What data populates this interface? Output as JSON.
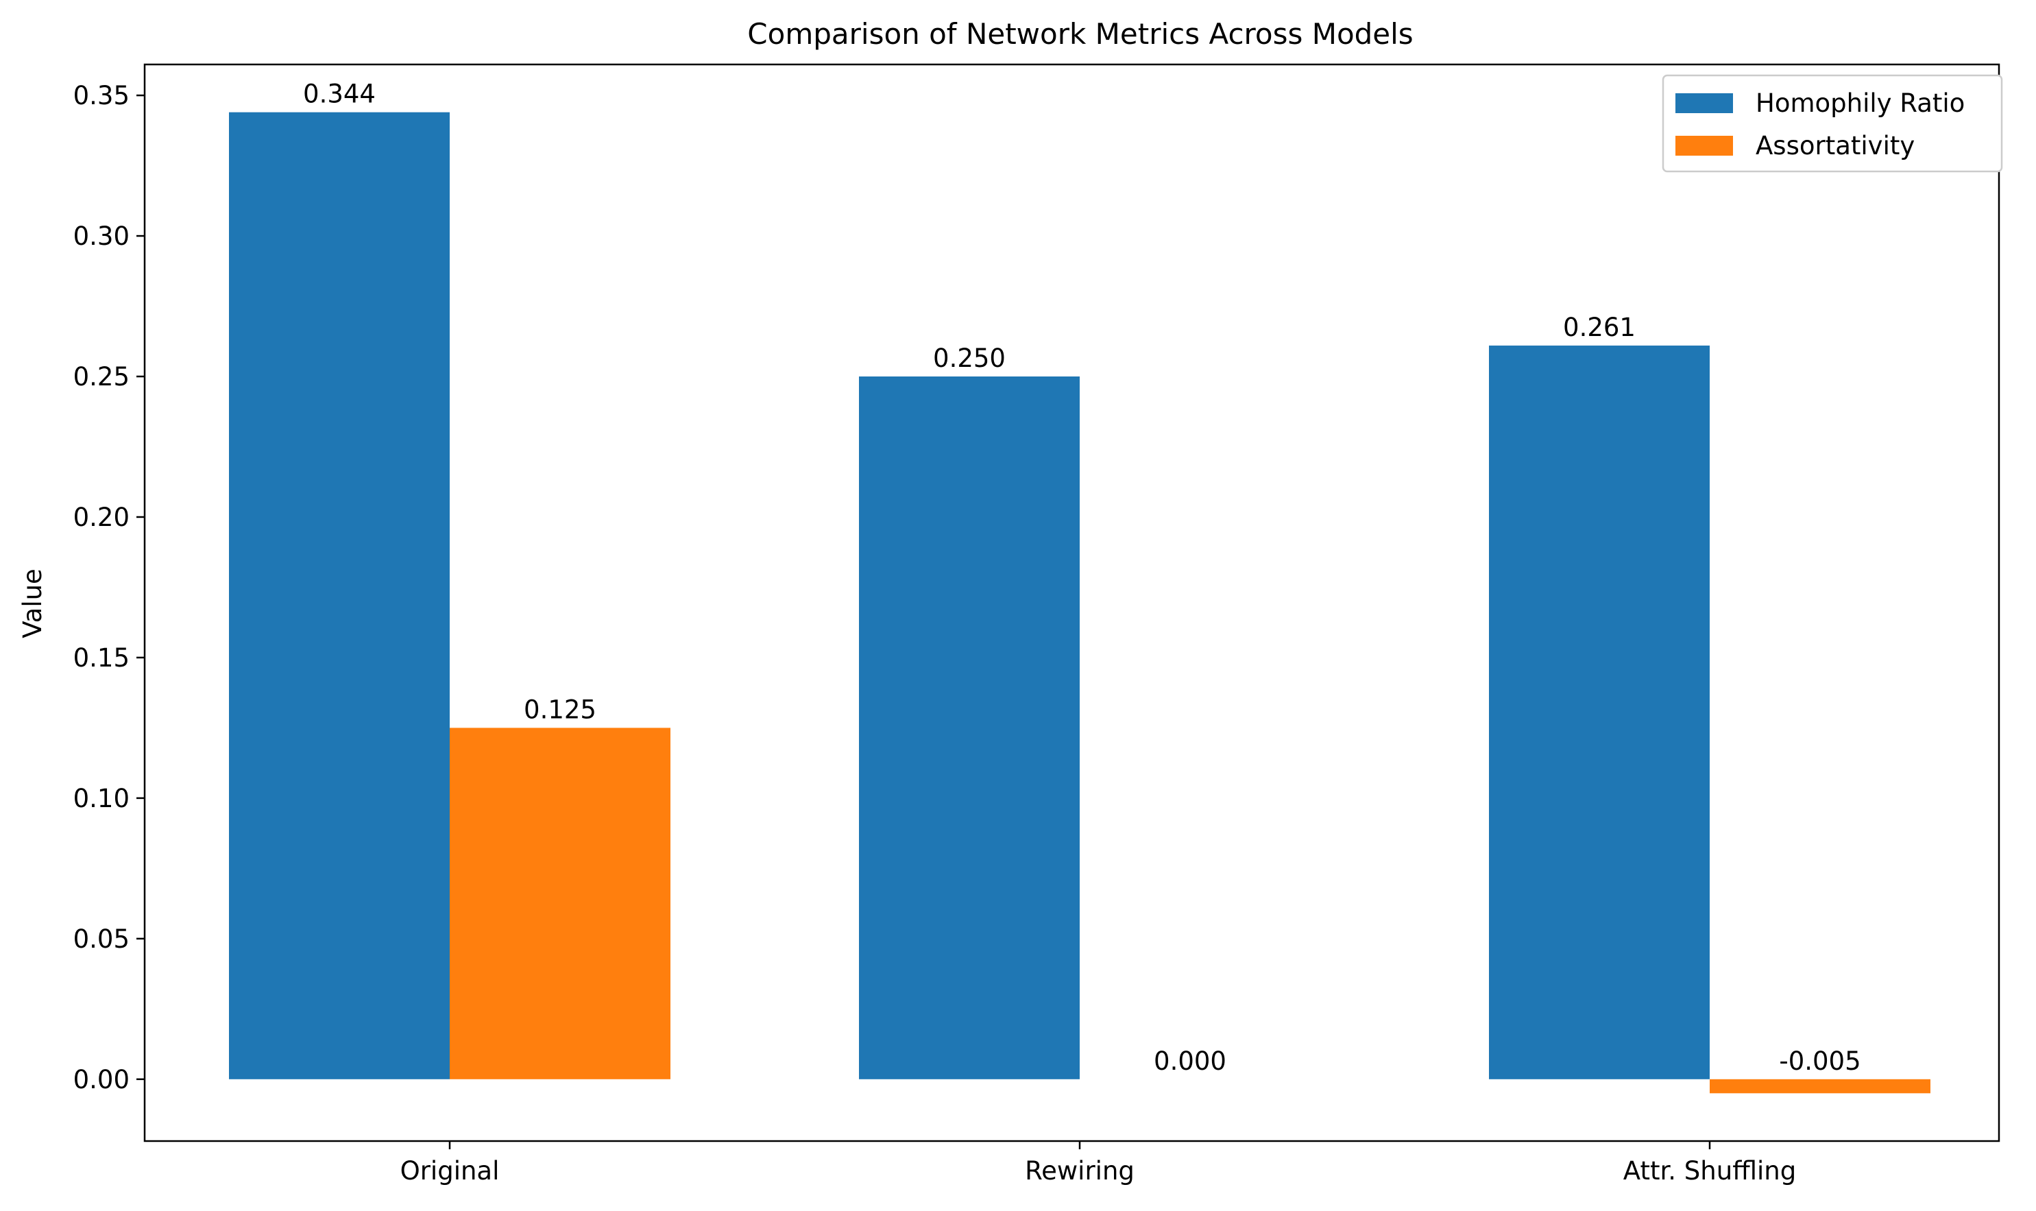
{
  "chart_data": {
    "type": "bar",
    "title": "Comparison of Network Metrics Across Models",
    "xlabel": "",
    "ylabel": "Value",
    "categories": [
      "Original",
      "Rewiring",
      "Attr. Shuffling"
    ],
    "series": [
      {
        "name": "Homophily Ratio",
        "values": [
          0.344,
          0.25,
          0.261
        ],
        "labels": [
          "0.344",
          "0.250",
          "0.261"
        ],
        "color": "#1f77b4"
      },
      {
        "name": "Assortativity",
        "values": [
          0.125,
          0.0,
          -0.005
        ],
        "labels": [
          "0.125",
          "0.000",
          "-0.005"
        ],
        "color": "#ff7f0e"
      }
    ],
    "ylim": [
      -0.022,
      0.361
    ],
    "yticks": [
      0.0,
      0.05,
      0.1,
      0.15,
      0.2,
      0.25,
      0.3,
      0.35
    ],
    "ytick_labels": [
      "0.00",
      "0.05",
      "0.10",
      "0.15",
      "0.20",
      "0.25",
      "0.30",
      "0.35"
    ],
    "grid": false,
    "legend_position": "top-right"
  }
}
